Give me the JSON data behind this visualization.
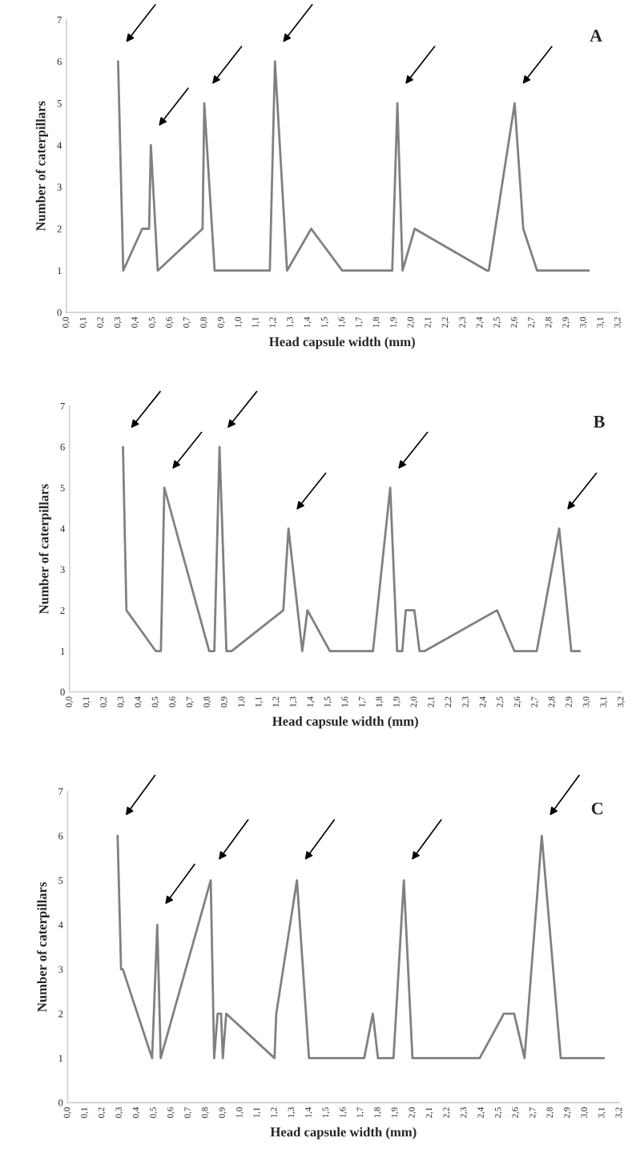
{
  "chart_data": [
    {
      "type": "line",
      "title": "A",
      "xlabel": "Head capsule width (mm)",
      "ylabel": "Number of caterpillars",
      "xlim": [
        0,
        3.2
      ],
      "ylim": [
        0,
        7
      ],
      "xticks": [
        {
          "value": 0,
          "label": "0,0"
        },
        {
          "value": 0.1,
          "label": "0,1"
        },
        {
          "value": 0.2,
          "label": "0,2"
        },
        {
          "value": 0.3,
          "label": "0,3"
        },
        {
          "value": 0.4,
          "label": "0,4"
        },
        {
          "value": 0.5,
          "label": "0,5"
        },
        {
          "value": 0.6,
          "label": "0,6"
        },
        {
          "value": 0.7,
          "label": "0,7"
        },
        {
          "value": 0.8,
          "label": "0,8"
        },
        {
          "value": 0.9,
          "label": "0,9"
        },
        {
          "value": 1.0,
          "label": "1,0"
        },
        {
          "value": 1.1,
          "label": "1,1"
        },
        {
          "value": 1.2,
          "label": "1,2"
        },
        {
          "value": 1.3,
          "label": "1,3"
        },
        {
          "value": 1.4,
          "label": "1,4"
        },
        {
          "value": 1.5,
          "label": "1,5"
        },
        {
          "value": 1.6,
          "label": "1,6"
        },
        {
          "value": 1.7,
          "label": "1,7"
        },
        {
          "value": 1.8,
          "label": "1,8"
        },
        {
          "value": 1.9,
          "label": "1,9"
        },
        {
          "value": 2.0,
          "label": "2,0"
        },
        {
          "value": 2.1,
          "label": "2,1"
        },
        {
          "value": 2.2,
          "label": "2,2"
        },
        {
          "value": 2.3,
          "label": "2,3"
        },
        {
          "value": 2.4,
          "label": "2,4"
        },
        {
          "value": 2.5,
          "label": "2,5"
        },
        {
          "value": 2.6,
          "label": "2,6"
        },
        {
          "value": 2.7,
          "label": "2,7"
        },
        {
          "value": 2.8,
          "label": "2,8"
        },
        {
          "value": 2.9,
          "label": "2,9"
        },
        {
          "value": 3.0,
          "label": "3,0"
        },
        {
          "value": 3.1,
          "label": "3,1"
        },
        {
          "value": 3.2,
          "label": "3,2"
        }
      ],
      "yticks": [
        0,
        1,
        2,
        3,
        4,
        5,
        6,
        7
      ],
      "grid": false,
      "legend": false,
      "series": [
        {
          "color": "#808080",
          "x": [
            0.3,
            0.33,
            0.44,
            0.48,
            0.49,
            0.53,
            0.79,
            0.8,
            0.86,
            1.18,
            1.21,
            1.28,
            1.42,
            1.6,
            1.89,
            1.92,
            1.95,
            2.02,
            2.44,
            2.45,
            2.6,
            2.65,
            2.73,
            3.03
          ],
          "values": [
            6,
            1,
            2,
            2,
            4,
            1,
            2,
            5,
            1,
            1,
            6,
            1,
            2,
            1,
            1,
            5,
            1,
            2,
            1,
            1,
            5,
            2,
            1,
            1
          ]
        }
      ]
    },
    {
      "type": "line",
      "title": "B",
      "xlabel": "Head capsule width (mm)",
      "ylabel": "Number of caterpillars",
      "xlim": [
        0,
        3.2
      ],
      "ylim": [
        0,
        7
      ],
      "xticks": [
        {
          "value": 0,
          "label": "0,0"
        },
        {
          "value": 0.1,
          "label": "0,1"
        },
        {
          "value": 0.2,
          "label": "0,2"
        },
        {
          "value": 0.3,
          "label": "0,3"
        },
        {
          "value": 0.4,
          "label": "0,4"
        },
        {
          "value": 0.5,
          "label": "0,5"
        },
        {
          "value": 0.6,
          "label": "0,6"
        },
        {
          "value": 0.7,
          "label": "0,7"
        },
        {
          "value": 0.8,
          "label": "0,8"
        },
        {
          "value": 0.9,
          "label": "0,9"
        },
        {
          "value": 1.0,
          "label": "1,0"
        },
        {
          "value": 1.1,
          "label": "1,1"
        },
        {
          "value": 1.2,
          "label": "1,2"
        },
        {
          "value": 1.3,
          "label": "1,3"
        },
        {
          "value": 1.4,
          "label": "1,4"
        },
        {
          "value": 1.5,
          "label": "1,5"
        },
        {
          "value": 1.6,
          "label": "1,6"
        },
        {
          "value": 1.7,
          "label": "1,7"
        },
        {
          "value": 1.8,
          "label": "1,8"
        },
        {
          "value": 1.9,
          "label": "1,9"
        },
        {
          "value": 2.0,
          "label": "2,0"
        },
        {
          "value": 2.1,
          "label": "2,1"
        },
        {
          "value": 2.2,
          "label": "2,2"
        },
        {
          "value": 2.3,
          "label": "2,3"
        },
        {
          "value": 2.4,
          "label": "2,4"
        },
        {
          "value": 2.5,
          "label": "2,5"
        },
        {
          "value": 2.6,
          "label": "2,6"
        },
        {
          "value": 2.7,
          "label": "2,7"
        },
        {
          "value": 2.8,
          "label": "2,8"
        },
        {
          "value": 2.9,
          "label": "2,9"
        },
        {
          "value": 3.0,
          "label": "3,0"
        },
        {
          "value": 3.1,
          "label": "3,1"
        },
        {
          "value": 3.2,
          "label": "3,2"
        }
      ],
      "yticks": [
        0,
        1,
        2,
        3,
        4,
        5,
        6,
        7
      ],
      "grid": false,
      "legend": false,
      "series": [
        {
          "color": "#808080",
          "x": [
            0.31,
            0.33,
            0.5,
            0.53,
            0.55,
            0.81,
            0.84,
            0.87,
            0.91,
            0.94,
            1.24,
            1.27,
            1.35,
            1.38,
            1.51,
            1.76,
            1.86,
            1.9,
            1.93,
            1.95,
            2.0,
            2.03,
            2.06,
            2.48,
            2.58,
            2.71,
            2.84,
            2.91,
            2.96
          ],
          "values": [
            6,
            2,
            1,
            1,
            5,
            1,
            1,
            6,
            1,
            1,
            2,
            4,
            1,
            2,
            1,
            1,
            5,
            1,
            1,
            2,
            2,
            1,
            1,
            2,
            1,
            1,
            4,
            1,
            1
          ]
        }
      ]
    },
    {
      "type": "line",
      "title": "C",
      "xlabel": "Head capsule width (mm)",
      "ylabel": "Number of caterpillars",
      "xlim": [
        0,
        3.2
      ],
      "ylim": [
        0,
        7
      ],
      "xticks": [
        {
          "value": 0,
          "label": "0,0"
        },
        {
          "value": 0.1,
          "label": "0,1"
        },
        {
          "value": 0.2,
          "label": "0,2"
        },
        {
          "value": 0.3,
          "label": "0,3"
        },
        {
          "value": 0.4,
          "label": "0,4"
        },
        {
          "value": 0.5,
          "label": "0,5"
        },
        {
          "value": 0.6,
          "label": "0,6"
        },
        {
          "value": 0.7,
          "label": "0,7"
        },
        {
          "value": 0.8,
          "label": "0,8"
        },
        {
          "value": 0.9,
          "label": "0,9"
        },
        {
          "value": 1.0,
          "label": "1,0"
        },
        {
          "value": 1.1,
          "label": "1,1"
        },
        {
          "value": 1.2,
          "label": "1,2"
        },
        {
          "value": 1.3,
          "label": "1,3"
        },
        {
          "value": 1.4,
          "label": "1,4"
        },
        {
          "value": 1.5,
          "label": "1,5"
        },
        {
          "value": 1.6,
          "label": "1,6"
        },
        {
          "value": 1.7,
          "label": "1,7"
        },
        {
          "value": 1.8,
          "label": "1,8"
        },
        {
          "value": 1.9,
          "label": "1,9"
        },
        {
          "value": 2.0,
          "label": "2,0"
        },
        {
          "value": 2.1,
          "label": "2,1"
        },
        {
          "value": 2.2,
          "label": "2,2"
        },
        {
          "value": 2.3,
          "label": "2,3"
        },
        {
          "value": 2.4,
          "label": "2,4"
        },
        {
          "value": 2.5,
          "label": "2,5"
        },
        {
          "value": 2.6,
          "label": "2,6"
        },
        {
          "value": 2.7,
          "label": "2,7"
        },
        {
          "value": 2.8,
          "label": "2,8"
        },
        {
          "value": 2.9,
          "label": "2,9"
        },
        {
          "value": 3.0,
          "label": "3,0"
        },
        {
          "value": 3.1,
          "label": "3,1"
        },
        {
          "value": 3.2,
          "label": "3,2"
        }
      ],
      "yticks": [
        0,
        1,
        2,
        3,
        4,
        5,
        6,
        7
      ],
      "grid": false,
      "legend": false,
      "series": [
        {
          "color": "#808080",
          "x": [
            0.29,
            0.31,
            0.32,
            0.49,
            0.52,
            0.54,
            0.83,
            0.85,
            0.87,
            0.89,
            0.9,
            0.92,
            1.2,
            1.21,
            1.33,
            1.4,
            1.72,
            1.77,
            1.8,
            1.89,
            1.95,
            2.0,
            2.39,
            2.53,
            2.59,
            2.65,
            2.75,
            2.86,
            3.11
          ],
          "values": [
            6,
            3,
            3,
            1,
            4,
            1,
            5,
            1,
            2,
            2,
            1,
            2,
            1,
            2,
            5,
            1,
            1,
            2,
            1,
            1,
            5,
            1,
            1,
            2,
            2,
            1,
            6,
            1,
            1
          ]
        }
      ]
    }
  ]
}
